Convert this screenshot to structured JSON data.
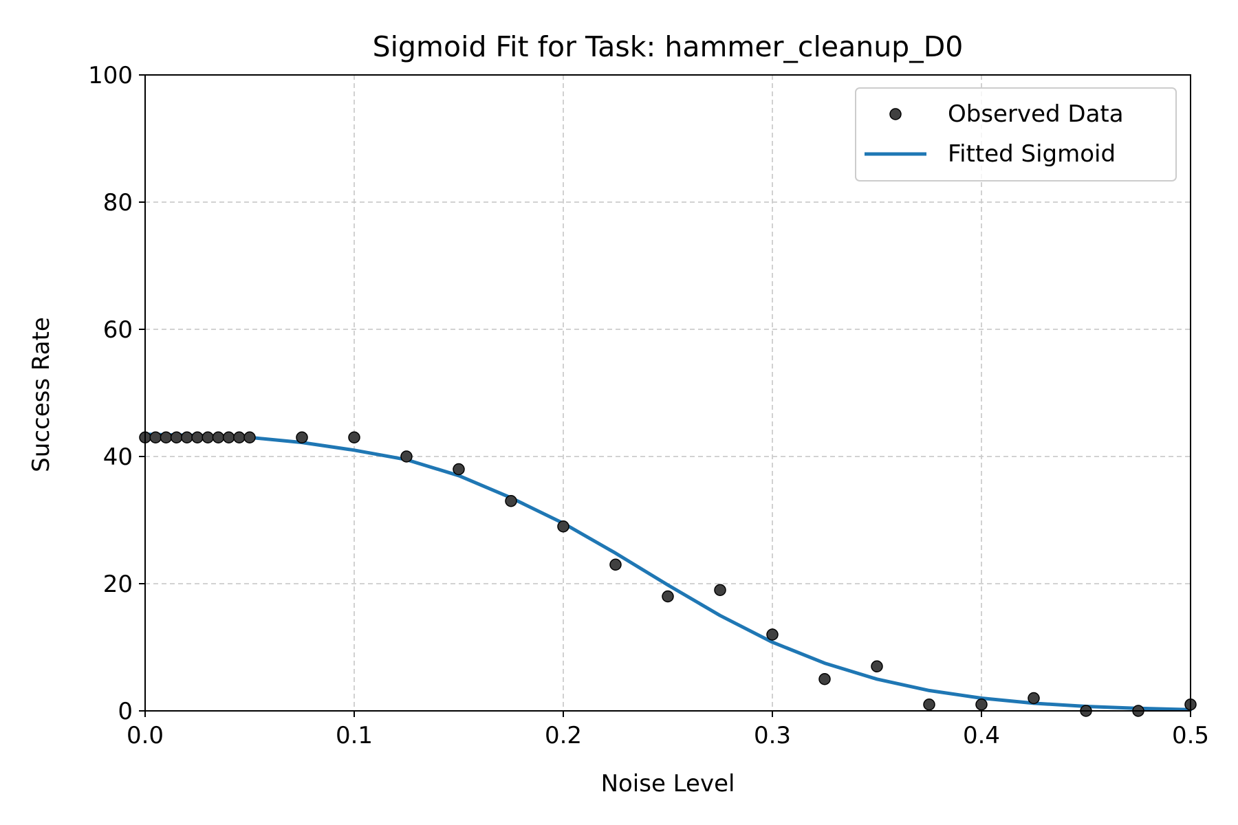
{
  "chart_data": {
    "type": "scatter",
    "title": "Sigmoid Fit for Task: hammer_cleanup_D0",
    "xlabel": "Noise Level",
    "ylabel": "Success Rate",
    "xlim": [
      0.0,
      0.5
    ],
    "ylim": [
      0,
      100
    ],
    "xticks": [
      0.0,
      0.1,
      0.2,
      0.3,
      0.4,
      0.5
    ],
    "yticks": [
      0,
      20,
      40,
      60,
      80,
      100
    ],
    "xtick_labels": [
      "0.0",
      "0.1",
      "0.2",
      "0.3",
      "0.4",
      "0.5"
    ],
    "ytick_labels": [
      "0",
      "20",
      "40",
      "60",
      "80",
      "100"
    ],
    "grid": true,
    "legend_position": "top-right",
    "colors": {
      "observed": "#404040",
      "fit": "#1f77b4",
      "grid": "#cccccc"
    },
    "series": [
      {
        "name": "Observed Data",
        "kind": "scatter",
        "x": [
          0.0,
          0.005,
          0.01,
          0.015,
          0.02,
          0.025,
          0.03,
          0.035,
          0.04,
          0.045,
          0.05,
          0.075,
          0.1,
          0.125,
          0.15,
          0.175,
          0.2,
          0.225,
          0.25,
          0.275,
          0.3,
          0.325,
          0.35,
          0.375,
          0.4,
          0.425,
          0.45,
          0.475,
          0.5
        ],
        "y": [
          43,
          43,
          43,
          43,
          43,
          43,
          43,
          43,
          43,
          43,
          43,
          43,
          43,
          40,
          38,
          33,
          29,
          23,
          18,
          19,
          12,
          5,
          7,
          1,
          1,
          2,
          0,
          0,
          1
        ]
      },
      {
        "name": "Fitted Sigmoid",
        "kind": "line",
        "x": [
          0.0,
          0.025,
          0.05,
          0.075,
          0.1,
          0.125,
          0.15,
          0.175,
          0.2,
          0.225,
          0.25,
          0.275,
          0.3,
          0.325,
          0.35,
          0.375,
          0.4,
          0.425,
          0.45,
          0.475,
          0.5
        ],
        "y": [
          43.5,
          43.3,
          43.0,
          42.2,
          41.0,
          39.5,
          37.0,
          33.5,
          29.5,
          24.8,
          19.8,
          15.0,
          10.8,
          7.5,
          5.0,
          3.2,
          2.0,
          1.2,
          0.7,
          0.4,
          0.2
        ]
      }
    ]
  }
}
